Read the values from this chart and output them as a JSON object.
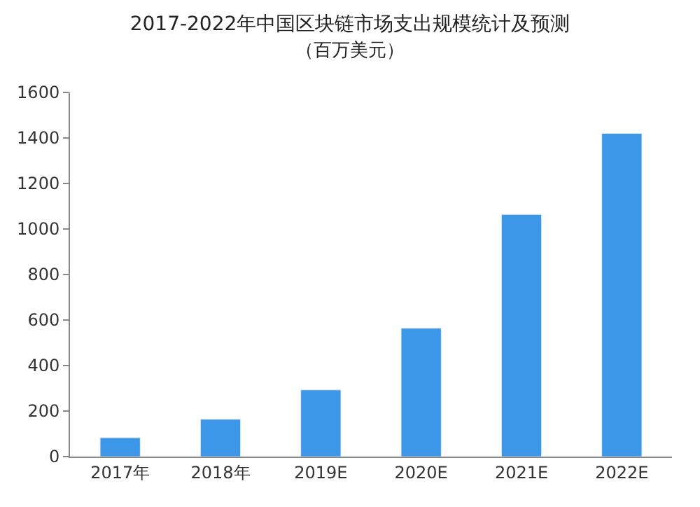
{
  "chart_data": {
    "type": "bar",
    "title": "2017-2022年中国区块链市场支出规模统计及预测",
    "subtitle": "（百万美元）",
    "categories": [
      "2017年",
      "2018年",
      "2019E",
      "2020E",
      "2021E",
      "2022E"
    ],
    "values": [
      83,
      164,
      293,
      564,
      1064,
      1420
    ],
    "color": "#3d97e8",
    "ylim": [
      0,
      1600
    ],
    "yticks": [
      0,
      200,
      400,
      600,
      800,
      1000,
      1200,
      1400,
      1600
    ]
  }
}
